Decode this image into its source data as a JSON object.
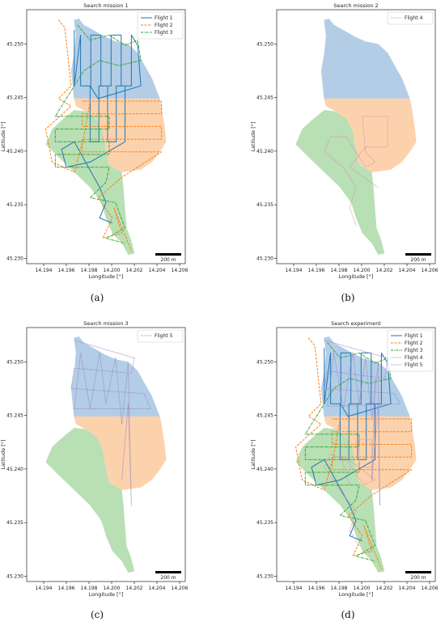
{
  "colors": {
    "region_north": "#b3cde6",
    "region_middle": "#fcd2ad",
    "region_south": "#b9dfb4",
    "flight_1": "#1f77b4",
    "flight_2": "#ff7f0e",
    "flight_3": "#2ca02c",
    "flight_4": "#d48fa8",
    "flight_5": "#9a86c2"
  },
  "chart_data": [
    {
      "type": "line",
      "panel": "(a)",
      "title": "Search mission 1",
      "xlabel": "Longitude [°]",
      "ylabel": "Latitude [°]",
      "xlim": [
        14.1925,
        14.2065
      ],
      "ylim": [
        45.2295,
        45.2532
      ],
      "xticks": [
        "14.194",
        "14.196",
        "14.198",
        "14.200",
        "14.202",
        "14.204",
        "14.206"
      ],
      "yticks": [
        "45.230",
        "45.235",
        "45.240",
        "45.245",
        "45.250"
      ],
      "legend_position": "top-right",
      "scalebar": "200 m",
      "series": [
        {
          "name": "Flight 1",
          "style": "solid"
        },
        {
          "name": "Flight 2",
          "style": "dashed"
        },
        {
          "name": "Flight 3",
          "style": "dashdot"
        }
      ]
    },
    {
      "type": "line",
      "panel": "(b)",
      "title": "Search mission 2",
      "xlabel": "Longitude [°]",
      "ylabel": "Latitude [°]",
      "xlim": [
        14.1925,
        14.2065
      ],
      "ylim": [
        45.2295,
        45.2532
      ],
      "xticks": [
        "14.194",
        "14.196",
        "14.198",
        "14.200",
        "14.202",
        "14.204",
        "14.206"
      ],
      "yticks": [
        "45.230",
        "45.235",
        "45.240",
        "45.245",
        "45.250"
      ],
      "legend_position": "top-right",
      "scalebar": "200 m",
      "series": [
        {
          "name": "Flight 4",
          "style": "solid"
        }
      ]
    },
    {
      "type": "line",
      "panel": "(c)",
      "title": "Search mission 3",
      "xlabel": "Longitude [°]",
      "ylabel": "Latitude [°]",
      "xlim": [
        14.1925,
        14.2065
      ],
      "ylim": [
        45.2295,
        45.2532
      ],
      "xticks": [
        "14.194",
        "14.196",
        "14.198",
        "14.200",
        "14.202",
        "14.204",
        "14.206"
      ],
      "yticks": [
        "45.230",
        "45.235",
        "45.240",
        "45.245",
        "45.250"
      ],
      "legend_position": "top-right",
      "scalebar": "200 m",
      "series": [
        {
          "name": "Flight 5",
          "style": "solid"
        }
      ]
    },
    {
      "type": "line",
      "panel": "(d)",
      "title": "Search experiment",
      "xlabel": "Longitude [°]",
      "ylabel": "Latitude [°]",
      "xlim": [
        14.1925,
        14.2065
      ],
      "ylim": [
        45.2295,
        45.2532
      ],
      "xticks": [
        "14.194",
        "14.196",
        "14.198",
        "14.200",
        "14.202",
        "14.204",
        "14.206"
      ],
      "yticks": [
        "45.230",
        "45.235",
        "45.240",
        "45.245",
        "45.250"
      ],
      "legend_position": "top-right",
      "scalebar": "200 m",
      "series": [
        {
          "name": "Flight 1",
          "style": "solid"
        },
        {
          "name": "Flight 2",
          "style": "dashed"
        },
        {
          "name": "Flight 3",
          "style": "dashdot"
        },
        {
          "name": "Flight 4",
          "style": "dotted"
        },
        {
          "name": "Flight 5",
          "style": "dotted"
        }
      ]
    }
  ]
}
